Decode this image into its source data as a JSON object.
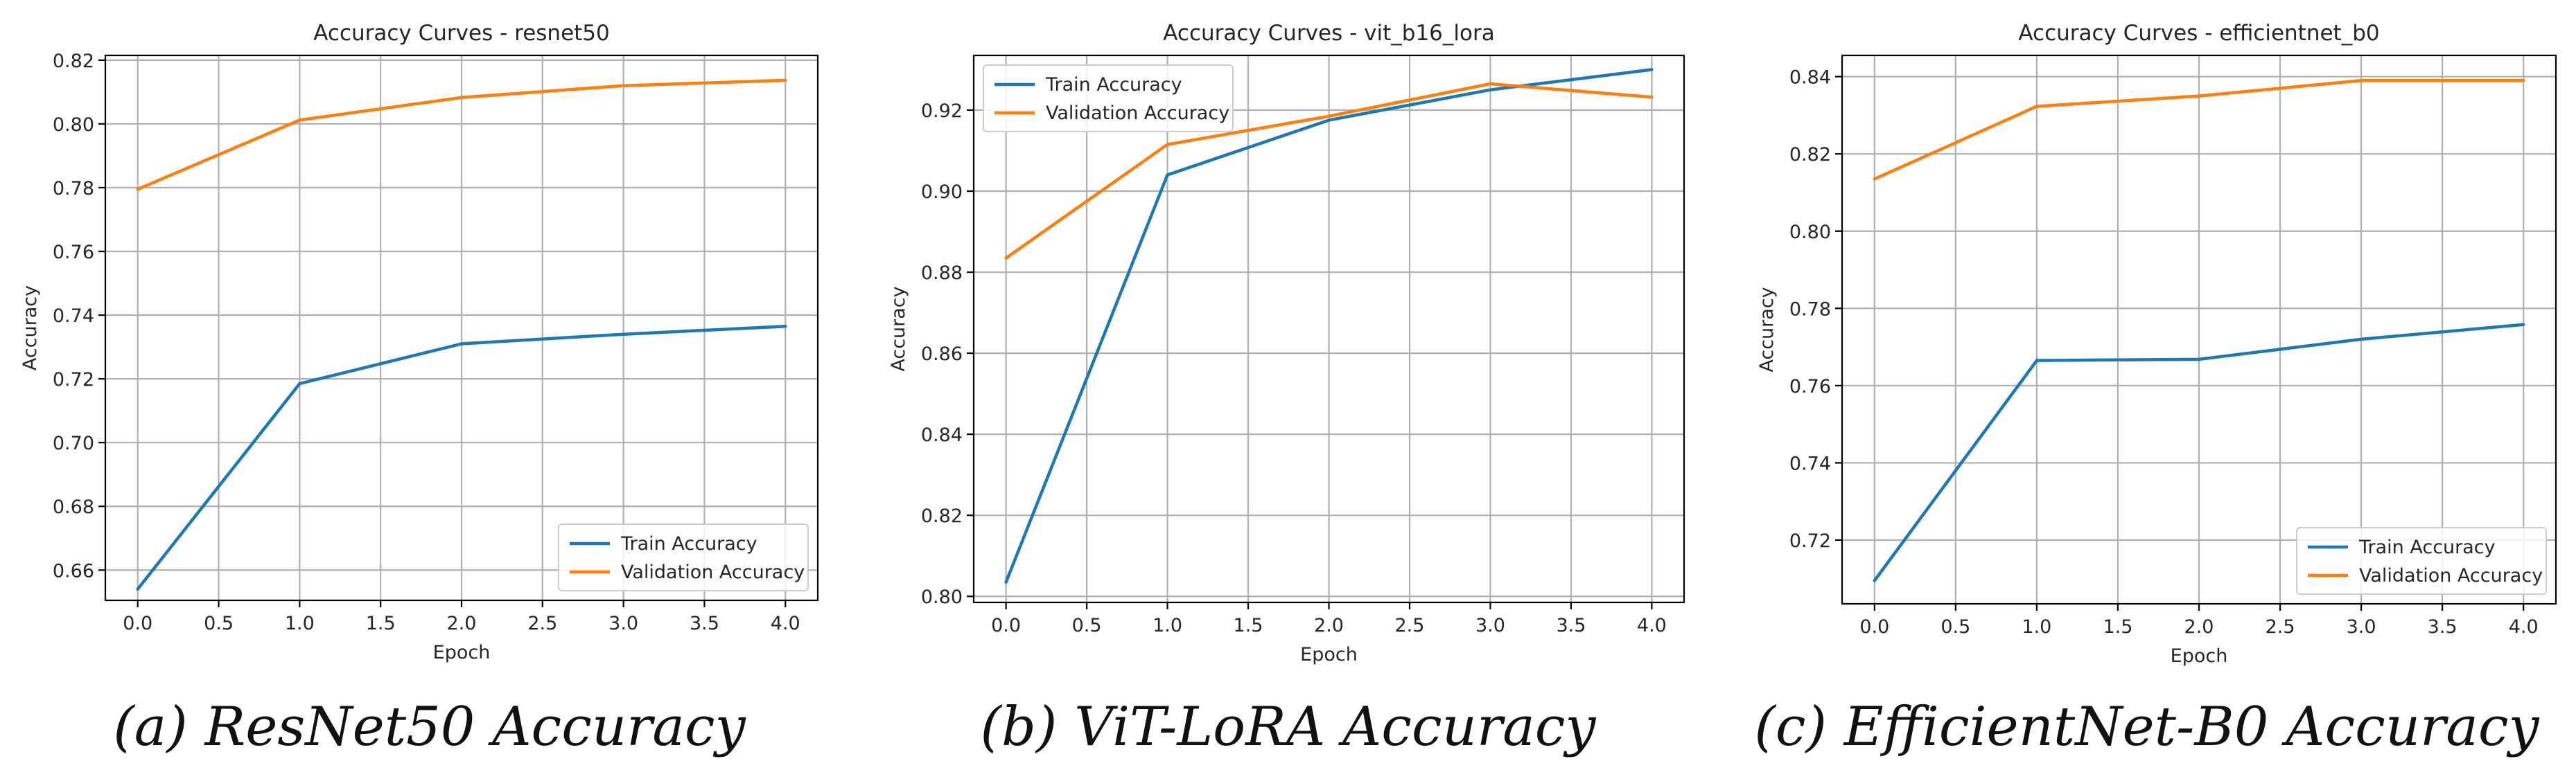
{
  "colors": {
    "train": "#1f77b4",
    "validation": "#ff7f0e",
    "grid": "#b0b0b0",
    "axis": "#000000",
    "text": "#262626"
  },
  "chart_data": [
    {
      "type": "line",
      "title": "Accuracy Curves - resnet50",
      "xlabel": "Epoch",
      "ylabel": "Accuracy",
      "x": [
        0,
        1,
        2,
        3,
        4
      ],
      "xlim": [
        -0.2,
        4.2
      ],
      "ylim": [
        0.6505,
        0.8215
      ],
      "xticks": [
        0.0,
        0.5,
        1.0,
        1.5,
        2.0,
        2.5,
        3.0,
        3.5,
        4.0
      ],
      "xtick_labels": [
        "0.0",
        "0.5",
        "1.0",
        "1.5",
        "2.0",
        "2.5",
        "3.0",
        "3.5",
        "4.0"
      ],
      "yticks": [
        0.66,
        0.68,
        0.7,
        0.72,
        0.74,
        0.76,
        0.78,
        0.8,
        0.82
      ],
      "ytick_labels": [
        "0.66",
        "0.68",
        "0.70",
        "0.72",
        "0.74",
        "0.76",
        "0.78",
        "0.80",
        "0.82"
      ],
      "grid": true,
      "legend_position": "lower-right",
      "series": [
        {
          "name": "Train Accuracy",
          "color": "#1f77b4",
          "values": [
            0.654,
            0.7185,
            0.731,
            0.734,
            0.7365
          ]
        },
        {
          "name": "Validation Accuracy",
          "color": "#ff7f0e",
          "values": [
            0.7795,
            0.8012,
            0.8083,
            0.812,
            0.8137
          ]
        }
      ],
      "caption": "(a) ResNet50 Accuracy"
    },
    {
      "type": "line",
      "title": "Accuracy Curves - vit_b16_lora",
      "xlabel": "Epoch",
      "ylabel": "Accuracy",
      "x": [
        0,
        1,
        2,
        3,
        4
      ],
      "xlim": [
        -0.2,
        4.2
      ],
      "ylim": [
        0.7985,
        0.9335
      ],
      "xticks": [
        0.0,
        0.5,
        1.0,
        1.5,
        2.0,
        2.5,
        3.0,
        3.5,
        4.0
      ],
      "xtick_labels": [
        "0.0",
        "0.5",
        "1.0",
        "1.5",
        "2.0",
        "2.5",
        "3.0",
        "3.5",
        "4.0"
      ],
      "yticks": [
        0.8,
        0.82,
        0.84,
        0.86,
        0.88,
        0.9,
        0.92
      ],
      "ytick_labels": [
        "0.80",
        "0.82",
        "0.84",
        "0.86",
        "0.88",
        "0.90",
        "0.92"
      ],
      "grid": true,
      "legend_position": "upper-left",
      "series": [
        {
          "name": "Train Accuracy",
          "color": "#1f77b4",
          "values": [
            0.8035,
            0.904,
            0.9175,
            0.925,
            0.93
          ]
        },
        {
          "name": "Validation Accuracy",
          "color": "#ff7f0e",
          "values": [
            0.8835,
            0.9115,
            0.9185,
            0.9265,
            0.9232
          ]
        }
      ],
      "caption": "(b) ViT-LoRA Accuracy"
    },
    {
      "type": "line",
      "title": "Accuracy Curves - efficientnet_b0",
      "xlabel": "Epoch",
      "ylabel": "Accuracy",
      "x": [
        0,
        1,
        2,
        3,
        4
      ],
      "xlim": [
        -0.2,
        4.2
      ],
      "ylim": [
        0.7035,
        0.8455
      ],
      "xticks": [
        0.0,
        0.5,
        1.0,
        1.5,
        2.0,
        2.5,
        3.0,
        3.5,
        4.0
      ],
      "xtick_labels": [
        "0.0",
        "0.5",
        "1.0",
        "1.5",
        "2.0",
        "2.5",
        "3.0",
        "3.5",
        "4.0"
      ],
      "yticks": [
        0.72,
        0.74,
        0.76,
        0.78,
        0.8,
        0.82,
        0.84
      ],
      "ytick_labels": [
        "0.72",
        "0.74",
        "0.76",
        "0.78",
        "0.80",
        "0.82",
        "0.84"
      ],
      "grid": true,
      "legend_position": "lower-right",
      "series": [
        {
          "name": "Train Accuracy",
          "color": "#1f77b4",
          "values": [
            0.7095,
            0.7665,
            0.7668,
            0.772,
            0.7758
          ]
        },
        {
          "name": "Validation Accuracy",
          "color": "#ff7f0e",
          "values": [
            0.8135,
            0.8323,
            0.835,
            0.839,
            0.839
          ]
        }
      ],
      "caption": "(c) EfficientNet-B0 Accuracy"
    }
  ]
}
